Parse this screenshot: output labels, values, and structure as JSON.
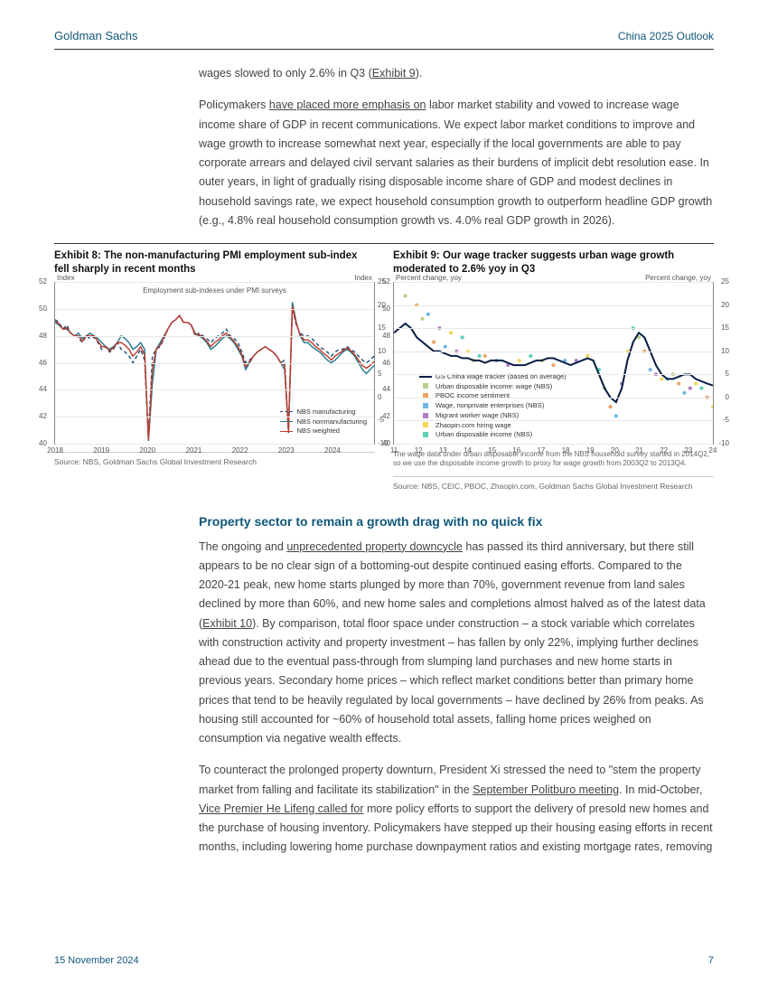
{
  "header": {
    "left": "Goldman Sachs",
    "right": "China 2025 Outlook"
  },
  "para1_pre": "wages slowed to only 2.6% in Q3 (",
  "para1_link": "Exhibit 9",
  "para1_post": ").",
  "para2_pre": "Policymakers ",
  "para2_link": "have placed more emphasis on",
  "para2_post": " labor market stability and vowed to increase wage income share of GDP in recent communications. We expect labor market conditions to improve and wage growth to increase somewhat next year, especially if the local governments are able to pay corporate arrears and delayed civil servant salaries as their burdens of implicit debt resolution ease. In outer years, in light of gradually rising disposable income share of GDP and modest declines in household savings rate, we expect household consumption growth to outperform headline GDP growth (e.g., 4.8% real household consumption growth vs. 4.0% real GDP growth in 2026).",
  "exhibit8": {
    "title": "Exhibit 8: The non-manufacturing PMI employment sub-index fell sharply in recent months",
    "axis_label": "Index",
    "inline_title": "Employment sub-indexes under PMI surveys",
    "ylim": [
      40,
      52
    ],
    "yticks": [
      40,
      42,
      44,
      46,
      48,
      50,
      52
    ],
    "xticks": [
      "2018",
      "2019",
      "2020",
      "2021",
      "2022",
      "2023",
      "2024"
    ],
    "grid_color": "#e8e8e8",
    "series": [
      {
        "name": "NBS manufacturing",
        "color": "#1f4e79",
        "dash": "4,3",
        "data": [
          49.2,
          49.0,
          48.5,
          48.8,
          48.2,
          48.0,
          47.9,
          47.5,
          48.0,
          47.8,
          47.9,
          47.5,
          47.0,
          47.2,
          46.8,
          47.0,
          47.5,
          47.0,
          46.8,
          46.5,
          46.0,
          46.5,
          47.0,
          46.2,
          40.5,
          46.5,
          47.0,
          47.2,
          47.8,
          48.5,
          49.0,
          49.2,
          49.5,
          49.0,
          49.0,
          48.8,
          48.0,
          48.2,
          48.0,
          47.8,
          47.5,
          47.8,
          48.0,
          48.2,
          48.5,
          48.0,
          47.8,
          47.5,
          46.8,
          46.0,
          46.2,
          46.5,
          46.8,
          47.0,
          47.2,
          47.0,
          46.8,
          46.5,
          46.0,
          46.2,
          40.8,
          50.0,
          48.8,
          48.2,
          48.0,
          48.0,
          47.8,
          47.5,
          47.2,
          47.0,
          46.8,
          46.5,
          46.8,
          47.0,
          47.0,
          47.2,
          47.0,
          46.8,
          46.5,
          46.2,
          46.0,
          46.2,
          46.5
        ]
      },
      {
        "name": "NBS nonmanufacturing",
        "color": "#1f7a8c",
        "dash": "none",
        "data": [
          49.0,
          48.8,
          48.5,
          48.5,
          48.2,
          48.0,
          48.2,
          47.8,
          48.0,
          48.2,
          48.0,
          47.8,
          47.5,
          47.2,
          47.0,
          47.2,
          47.5,
          48.0,
          47.8,
          47.5,
          47.0,
          47.2,
          47.5,
          47.0,
          40.2,
          44.5,
          47.0,
          47.5,
          48.0,
          48.5,
          49.0,
          49.2,
          49.5,
          49.0,
          49.0,
          48.8,
          48.2,
          48.0,
          47.8,
          47.5,
          47.0,
          47.2,
          47.5,
          47.8,
          48.0,
          47.8,
          47.5,
          47.0,
          46.5,
          45.5,
          46.0,
          46.5,
          46.8,
          47.0,
          47.2,
          47.0,
          46.8,
          46.5,
          46.0,
          45.5,
          41.0,
          50.5,
          49.0,
          48.0,
          47.5,
          47.5,
          47.2,
          47.0,
          46.8,
          46.5,
          46.2,
          46.0,
          46.2,
          46.5,
          46.8,
          47.0,
          46.8,
          46.5,
          46.0,
          45.5,
          45.2,
          45.5,
          45.8
        ]
      },
      {
        "name": "NBS weighted",
        "color": "#c0392b",
        "dash": "none",
        "data": [
          49.1,
          48.9,
          48.5,
          48.6,
          48.2,
          48.0,
          48.0,
          47.6,
          48.0,
          48.0,
          48.0,
          47.6,
          47.2,
          47.2,
          46.9,
          47.1,
          47.5,
          47.5,
          47.3,
          47.0,
          46.5,
          46.8,
          47.2,
          46.6,
          40.3,
          45.5,
          47.0,
          47.3,
          47.9,
          48.5,
          49.0,
          49.2,
          49.5,
          49.0,
          49.0,
          48.8,
          48.1,
          48.1,
          47.9,
          47.6,
          47.2,
          47.5,
          47.7,
          48.0,
          48.2,
          47.9,
          47.6,
          47.2,
          46.6,
          45.7,
          46.1,
          46.5,
          46.8,
          47.0,
          47.2,
          47.0,
          46.8,
          46.5,
          46.0,
          45.8,
          40.9,
          50.2,
          48.9,
          48.1,
          47.7,
          47.7,
          47.5,
          47.2,
          47.0,
          46.7,
          46.5,
          46.2,
          46.5,
          46.7,
          46.9,
          47.1,
          46.9,
          46.6,
          46.2,
          45.8,
          45.6,
          45.8,
          46.1
        ]
      }
    ],
    "source": "Source: NBS, Goldman Sachs Global Investment Research"
  },
  "exhibit9": {
    "title": "Exhibit 9: Our wage tracker suggests urban wage growth moderated to 2.6% yoy in Q3",
    "axis_label": "Percent change, yoy",
    "ylim": [
      -10,
      25
    ],
    "yticks": [
      -10,
      -5,
      0,
      5,
      10,
      15,
      20,
      25
    ],
    "xticks": [
      "11",
      "12",
      "13",
      "14",
      "15",
      "16",
      "17",
      "18",
      "19",
      "20",
      "21",
      "22",
      "23",
      "24"
    ],
    "grid_color": "#e8e8e8",
    "main_series": {
      "name": "GS China wage tracker (based on average)",
      "color": "#0a1f44",
      "data": [
        14,
        15,
        16,
        15,
        13,
        12,
        11,
        10,
        10,
        9.5,
        9,
        9,
        8.5,
        8.5,
        8,
        8,
        7.5,
        8,
        8,
        8,
        7.5,
        7,
        7,
        7,
        7.5,
        8,
        8,
        8.5,
        8.5,
        8,
        7.5,
        7,
        7.5,
        8,
        8.5,
        8,
        5,
        2,
        0,
        -1,
        2,
        8,
        12,
        14,
        13,
        10,
        7,
        5,
        4,
        4,
        4.5,
        5,
        5,
        4,
        3.5,
        3,
        2.6
      ]
    },
    "scatter_legend": [
      {
        "name": "Urban disposable income: wage (NBS)",
        "color": "#9bbb59"
      },
      {
        "name": "PBOC income sentiment",
        "color": "#e67e22"
      },
      {
        "name": "Wage, nonprivate enterprises (NBS)",
        "color": "#3498db"
      },
      {
        "name": "Migrant worker wage (NBS)",
        "color": "#8e44ad"
      },
      {
        "name": "Zhaopin.com hiring wage",
        "color": "#f1c40f"
      },
      {
        "name": "Urban disposable income (NBS)",
        "color": "#1abc9c"
      }
    ],
    "scatter": [
      [
        2,
        22,
        "#9bbb59"
      ],
      [
        4,
        20,
        "#e67e22"
      ],
      [
        6,
        18,
        "#3498db"
      ],
      [
        8,
        15,
        "#8e44ad"
      ],
      [
        10,
        14,
        "#f1c40f"
      ],
      [
        12,
        13,
        "#1abc9c"
      ],
      [
        5,
        17,
        "#9bbb59"
      ],
      [
        7,
        12,
        "#e67e22"
      ],
      [
        9,
        11,
        "#3498db"
      ],
      [
        11,
        10,
        "#8e44ad"
      ],
      [
        13,
        10,
        "#f1c40f"
      ],
      [
        15,
        9,
        "#1abc9c"
      ],
      [
        14,
        8,
        "#9bbb59"
      ],
      [
        16,
        9,
        "#e67e22"
      ],
      [
        18,
        8,
        "#3498db"
      ],
      [
        20,
        7,
        "#8e44ad"
      ],
      [
        22,
        8,
        "#f1c40f"
      ],
      [
        24,
        9,
        "#1abc9c"
      ],
      [
        26,
        8,
        "#9bbb59"
      ],
      [
        28,
        7,
        "#e67e22"
      ],
      [
        30,
        8,
        "#3498db"
      ],
      [
        32,
        8,
        "#8e44ad"
      ],
      [
        34,
        9,
        "#f1c40f"
      ],
      [
        36,
        6,
        "#1abc9c"
      ],
      [
        37,
        2,
        "#9bbb59"
      ],
      [
        38,
        -2,
        "#e67e22"
      ],
      [
        39,
        -4,
        "#3498db"
      ],
      [
        40,
        3,
        "#8e44ad"
      ],
      [
        41,
        10,
        "#f1c40f"
      ],
      [
        42,
        15,
        "#1abc9c"
      ],
      [
        43,
        13,
        "#9bbb59"
      ],
      [
        44,
        10,
        "#e67e22"
      ],
      [
        45,
        6,
        "#3498db"
      ],
      [
        46,
        5,
        "#8e44ad"
      ],
      [
        47,
        4,
        "#f1c40f"
      ],
      [
        48,
        4,
        "#1abc9c"
      ],
      [
        49,
        5,
        "#9bbb59"
      ],
      [
        50,
        3,
        "#e67e22"
      ],
      [
        51,
        1,
        "#3498db"
      ],
      [
        52,
        2,
        "#8e44ad"
      ],
      [
        53,
        3,
        "#f1c40f"
      ],
      [
        54,
        2,
        "#1abc9c"
      ],
      [
        55,
        0,
        "#e67e22"
      ],
      [
        56,
        -2,
        "#f1c40f"
      ]
    ],
    "note": "The wage data under urban disposable income from the NBS household survey started in 2014Q2, so we use the disposable income growth to proxy for wage growth from 2003Q2 to 2013Q4.",
    "source": "Source: NBS, CEIC, PBOC, Zhaopin.com, Goldman Sachs Global Investment Research"
  },
  "section_heading": "Property sector to remain a growth drag with no quick fix",
  "para3_pre": "The ongoing and ",
  "para3_link": "unprecedented property downcycle",
  "para3_mid": " has passed its third anniversary, but there still appears to be no clear sign of a bottoming-out despite continued easing efforts. Compared to the 2020-21 peak, new home starts plunged by more than 70%, government revenue from land sales declined by more than 60%, and new home sales and completions almost halved as of the latest data (",
  "para3_link2": "Exhibit 10",
  "para3_post": "). By comparison, total floor space under construction – a stock variable which correlates with construction activity and property investment – has fallen by only 22%, implying further declines ahead due to the eventual pass-through from slumping land purchases and new home starts in previous years. Secondary home prices – which reflect market conditions better than primary home prices that tend to be heavily regulated by local governments – have declined by 26% from peaks. As housing still accounted for ~60% of household total assets, falling home prices weighed on consumption via negative wealth effects.",
  "para4_pre": "To counteract the prolonged property downturn, President Xi stressed the need to \"stem the property market from falling and facilitate its stabilization\" in the ",
  "para4_link1": "September Politburo meeting",
  "para4_mid": ". In mid-October, ",
  "para4_link2": "Vice Premier He Lifeng called for",
  "para4_post": " more policy efforts to support the delivery of presold new homes and the purchase of housing inventory. Policymakers have stepped up their housing easing efforts in recent months, including lowering home purchase downpayment ratios and existing mortgage rates, removing",
  "footer": {
    "date": "15 November 2024",
    "page": "7"
  }
}
